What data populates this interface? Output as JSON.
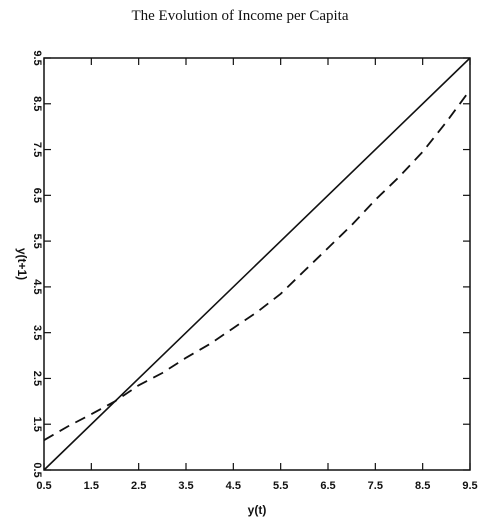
{
  "chart_data": {
    "type": "line",
    "title": "The Evolution of Income per Capita",
    "xlabel": "y(t)",
    "ylabel": "y(t+1)",
    "xlim": [
      0.5,
      9.5
    ],
    "ylim": [
      0.5,
      9.5
    ],
    "xticks": [
      "0.5",
      "1.5",
      "2.5",
      "3.5",
      "4.5",
      "5.5",
      "6.5",
      "7.5",
      "8.5",
      "9.5"
    ],
    "yticks": [
      "0.5",
      "1.5",
      "2.5",
      "3.5",
      "4.5",
      "5.5",
      "6.5",
      "7.5",
      "8.5",
      "9.5"
    ],
    "grid": false,
    "legend": "none",
    "series": [
      {
        "style": "solid",
        "x": [
          0.5,
          9.5
        ],
        "y": [
          0.5,
          9.5
        ]
      },
      {
        "style": "dashed",
        "x": [
          0.5,
          1.0,
          1.5,
          2.0,
          2.5,
          3.0,
          3.5,
          4.0,
          4.5,
          5.0,
          5.5,
          6.0,
          6.5,
          7.0,
          7.5,
          8.0,
          8.5,
          9.0,
          9.5
        ],
        "y": [
          1.15,
          1.45,
          1.72,
          2.0,
          2.35,
          2.62,
          2.95,
          3.25,
          3.6,
          3.95,
          4.35,
          4.85,
          5.35,
          5.85,
          6.4,
          6.9,
          7.45,
          8.1,
          8.8
        ]
      }
    ]
  }
}
